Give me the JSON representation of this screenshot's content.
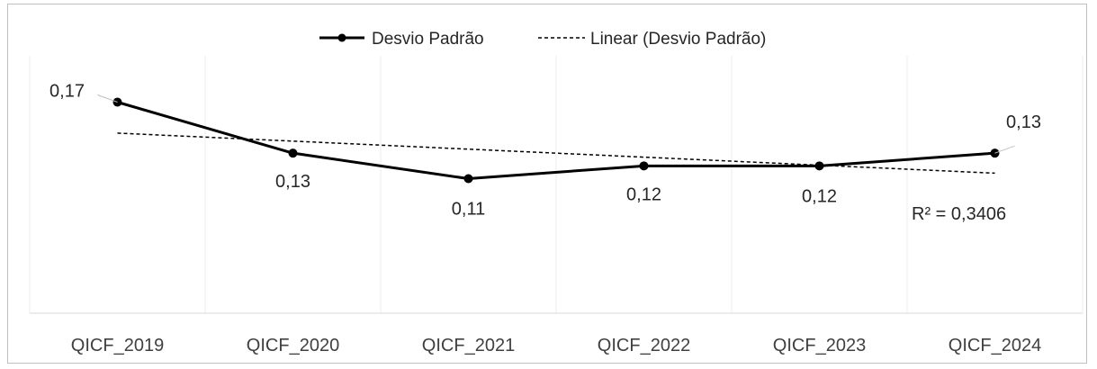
{
  "chart_data": {
    "type": "line",
    "title": "",
    "xlabel": "",
    "ylabel": "",
    "categories": [
      "QICF_2019",
      "QICF_2020",
      "QICF_2021",
      "QICF_2022",
      "QICF_2023",
      "QICF_2024"
    ],
    "series": [
      {
        "name": "Desvio Padrão",
        "values": [
          0.17,
          0.13,
          0.11,
          0.12,
          0.12,
          0.13
        ],
        "labels": [
          "0,17",
          "0,13",
          "0,11",
          "0,12",
          "0,12",
          "0,13"
        ],
        "style": "solid",
        "markers": true,
        "color": "#000000"
      },
      {
        "name": "Linear (Desvio Padrão)",
        "trendline_of": "Desvio Padrão",
        "style": "dashed",
        "color": "#000000",
        "r_squared_label": "R² = 0,3406"
      }
    ],
    "gridlines": "vertical",
    "legend": "top-center",
    "axis_color": "#d9d9d9",
    "grid_color": "#eeeeee"
  }
}
